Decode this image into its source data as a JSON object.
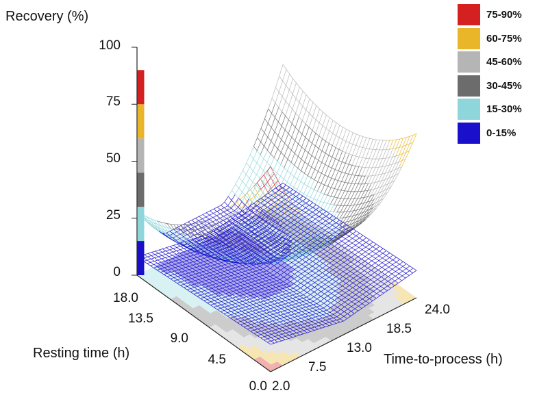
{
  "chart_data": {
    "type": "surface3d",
    "ylabel": "Recovery (%)",
    "xlabel": "Time-to-process (h)",
    "zlabel": "Resting time (h)",
    "y_ticks": [
      "0",
      "25",
      "50",
      "75",
      "100"
    ],
    "x_ticks": [
      "2.0",
      "7.5",
      "13.0",
      "18.5",
      "24.0"
    ],
    "z_ticks": [
      "0.0",
      "4.5",
      "9.0",
      "13.5",
      "18.0"
    ],
    "ylim": [
      0,
      100
    ],
    "legend": [
      {
        "label": "75-90%",
        "color": "#d42020"
      },
      {
        "label": "60-75%",
        "color": "#e8b628"
      },
      {
        "label": "45-60%",
        "color": "#b5b5b5"
      },
      {
        "label": "30-45%",
        "color": "#6c6c6c"
      },
      {
        "label": "15-30%",
        "color": "#8fd6dc"
      },
      {
        "label": "0-15%",
        "color": "#1a10cc"
      }
    ],
    "surfaces": [
      {
        "corner_values": {
          "t2_r0": 90,
          "t24_r0": 72,
          "t2_r18": 28,
          "t24_r18": 60
        },
        "min_value": 12
      },
      {
        "corner_values": {
          "t2_r0": 12,
          "t24_r0": 12,
          "t2_r18": 12,
          "t24_r18": 12
        },
        "min_value": 0
      }
    ]
  }
}
